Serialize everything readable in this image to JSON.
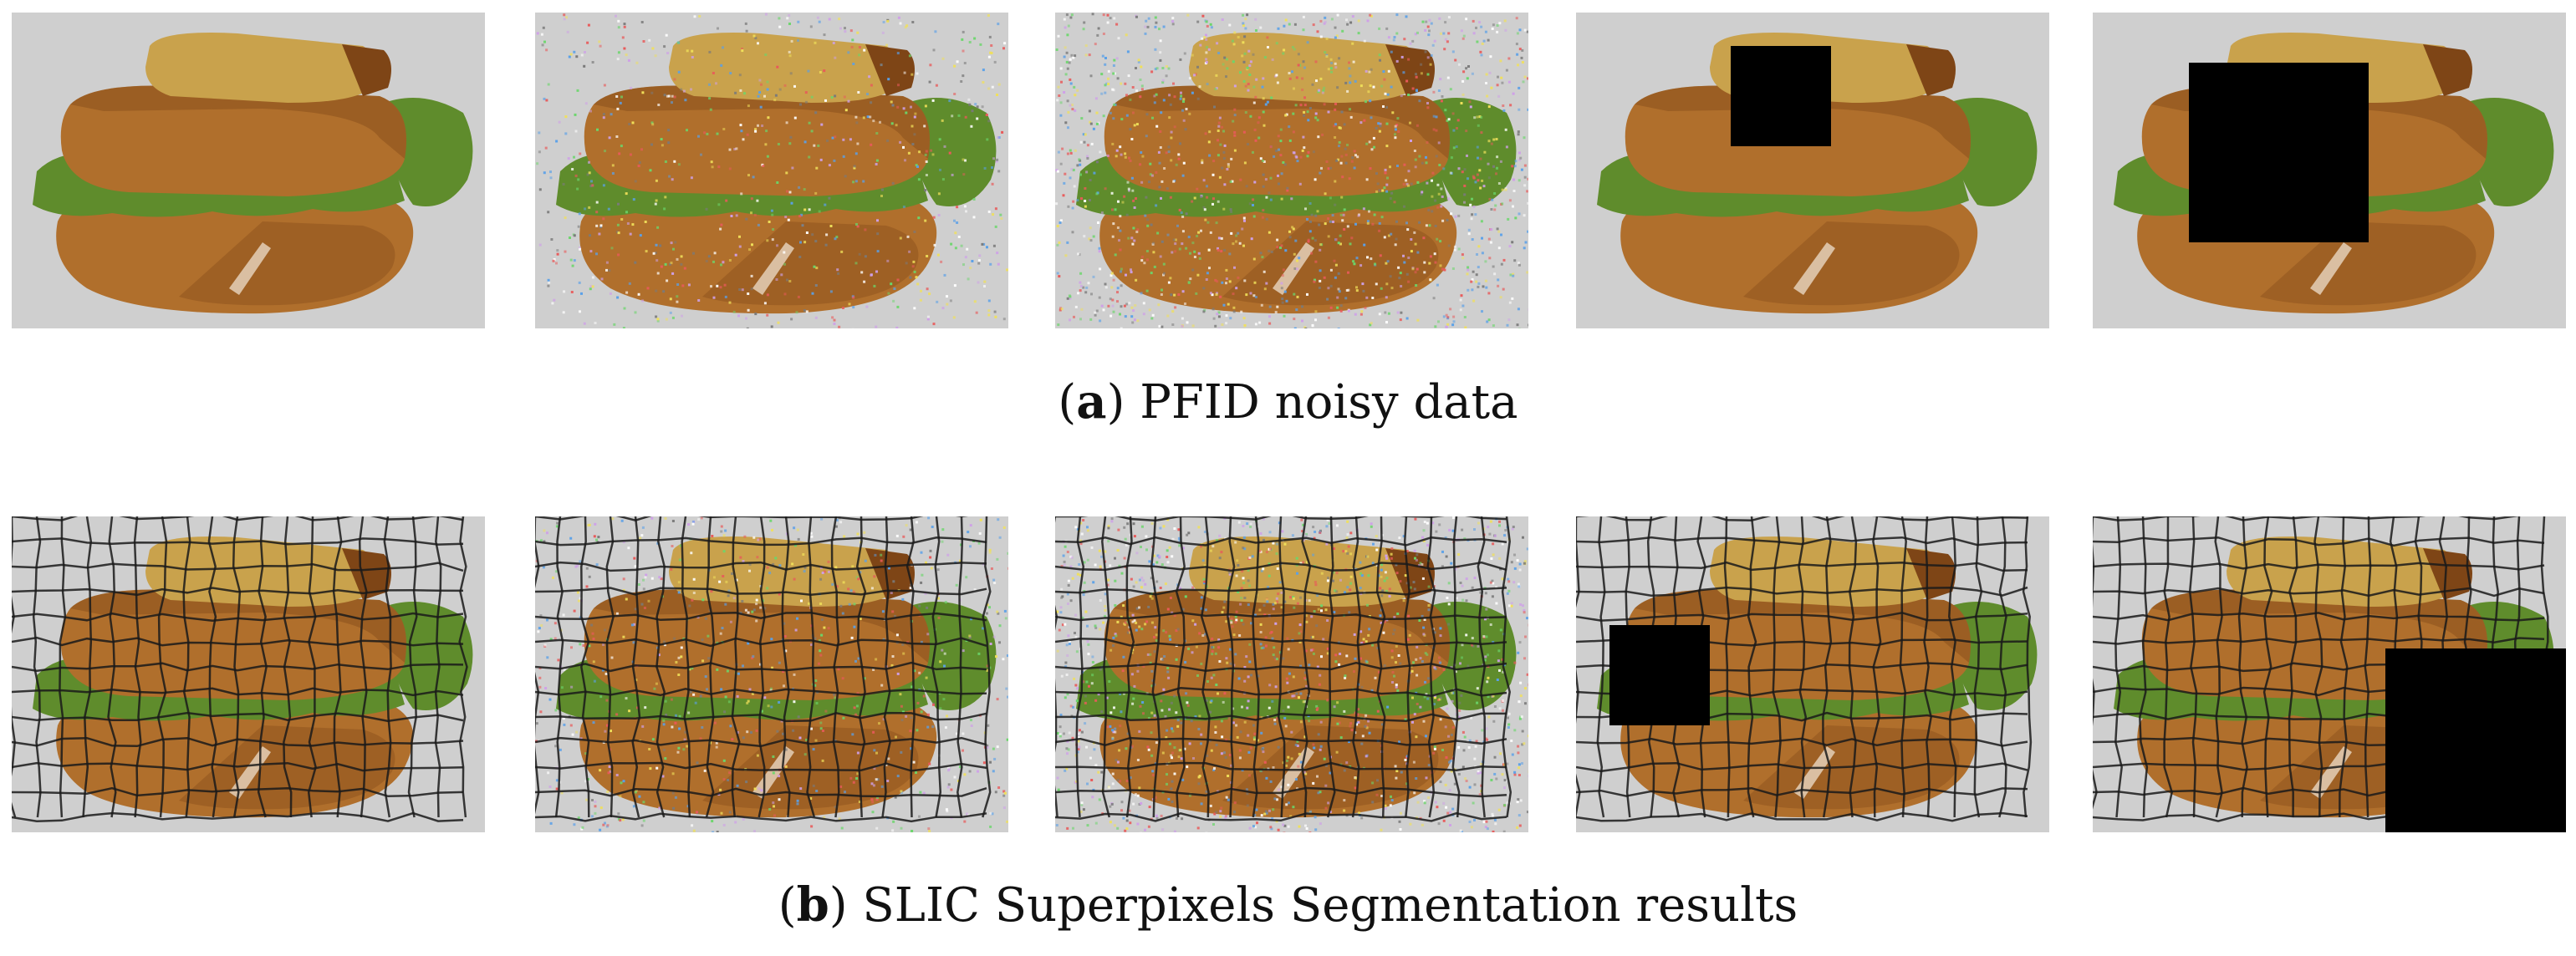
{
  "figure": {
    "colors": {
      "background_gray": "#cfcfcf",
      "bread": "#b06f2c",
      "bread_crust": "#7e4516",
      "bread_top": "#c9a24c",
      "lettuce": "#5f8c2c",
      "occlusion": "#000000",
      "segment_line": "#1a1a1a"
    },
    "rows": [
      {
        "id": "a",
        "caption": {
          "label": "a",
          "text": "PFID noisy data"
        },
        "panels": [
          {
            "variant": "clean",
            "noise_level": 0,
            "occlusion": "none"
          },
          {
            "variant": "gaussian-noise",
            "noise_level": 0.35,
            "occlusion": "none"
          },
          {
            "variant": "gaussian-noise",
            "noise_level": 0.7,
            "occlusion": "none"
          },
          {
            "variant": "occlusion-small",
            "noise_level": 0,
            "occlusion": "center-small"
          },
          {
            "variant": "occlusion-large",
            "noise_level": 0,
            "occlusion": "center-large"
          }
        ]
      },
      {
        "id": "b",
        "caption": {
          "label": "b",
          "text": "SLIC Superpixels Segmentation results"
        },
        "panels": [
          {
            "variant": "clean",
            "noise_level": 0,
            "occlusion": "none"
          },
          {
            "variant": "gaussian-noise",
            "noise_level": 0.35,
            "occlusion": "none"
          },
          {
            "variant": "gaussian-noise",
            "noise_level": 0.7,
            "occlusion": "none"
          },
          {
            "variant": "occlusion-small",
            "noise_level": 0,
            "occlusion": "left-small"
          },
          {
            "variant": "occlusion-large",
            "noise_level": 0,
            "occlusion": "bottom-right-large"
          }
        ]
      }
    ]
  }
}
